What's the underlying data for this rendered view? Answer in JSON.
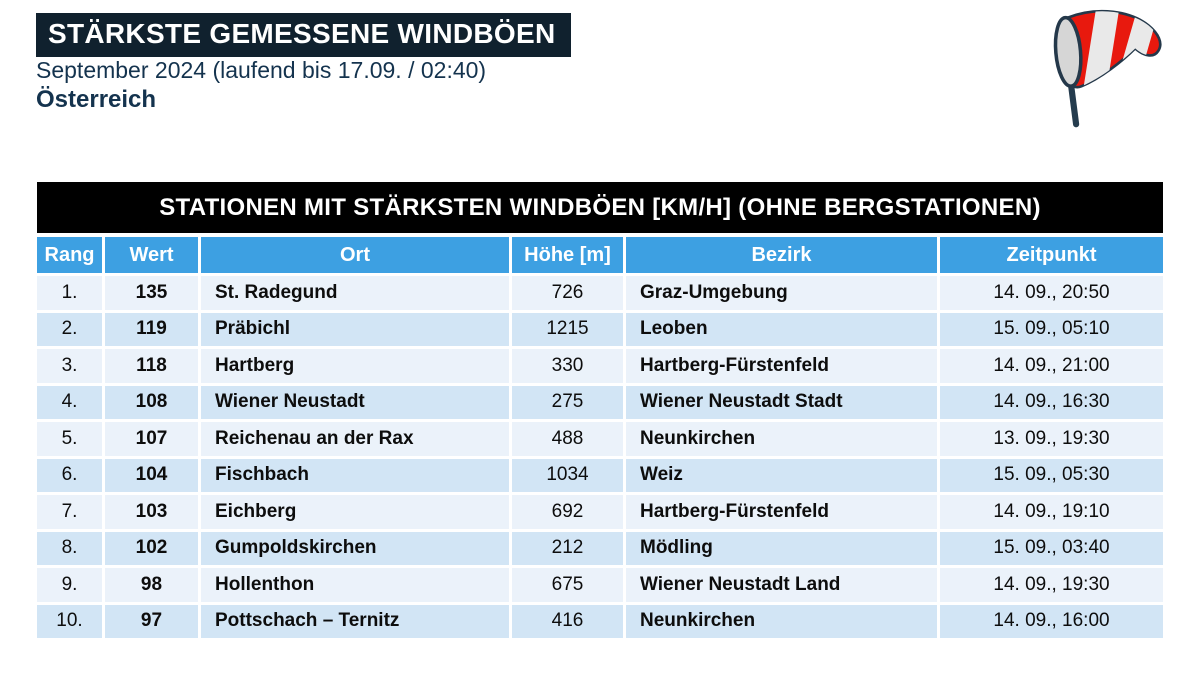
{
  "header": {
    "banner_title": "STÄRKSTE GEMESSENE WINDBÖEN",
    "subtitle": "September 2024 (laufend bis 17.09. / 02:40)",
    "region": "Österreich"
  },
  "icons": {
    "windsock": "windsock-icon"
  },
  "chart_data": {
    "type": "table",
    "title": "STATIONEN MIT STÄRKSTEN WINDBÖEN [KM/H] (OHNE BERGSTATIONEN)",
    "columns": [
      "Rang",
      "Wert",
      "Ort",
      "Höhe [m]",
      "Bezirk",
      "Zeitpunkt"
    ],
    "rows": [
      [
        "1.",
        135,
        "St. Radegund",
        726,
        "Graz-Umgebung",
        "14. 09., 20:50"
      ],
      [
        "2.",
        119,
        "Präbichl",
        1215,
        "Leoben",
        "15. 09., 05:10"
      ],
      [
        "3.",
        118,
        "Hartberg",
        330,
        "Hartberg-Fürstenfeld",
        "14. 09., 21:00"
      ],
      [
        "4.",
        108,
        "Wiener Neustadt",
        275,
        "Wiener Neustadt Stadt",
        "14. 09., 16:30"
      ],
      [
        "5.",
        107,
        "Reichenau an der Rax",
        488,
        "Neunkirchen",
        "13. 09., 19:30"
      ],
      [
        "6.",
        104,
        "Fischbach",
        1034,
        "Weiz",
        "15. 09., 05:30"
      ],
      [
        "7.",
        103,
        "Eichberg",
        692,
        "Hartberg-Fürstenfeld",
        "14. 09., 19:10"
      ],
      [
        "8.",
        102,
        "Gumpoldskirchen",
        212,
        "Mödling",
        "15. 09., 03:40"
      ],
      [
        "9.",
        98,
        "Hollenthon",
        675,
        "Wiener Neustadt Land",
        "14. 09., 19:30"
      ],
      [
        "10.",
        97,
        "Pottschach – Ternitz",
        416,
        "Neunkirchen",
        "14. 09., 16:00"
      ]
    ],
    "value_unit": "km/h",
    "legend_position": "none",
    "grid": false
  },
  "colors": {
    "banner_bg": "#10212e",
    "navy_text": "#14334e",
    "header_blue": "#3da0e2",
    "row_light": "#ebf2fa",
    "row_dark": "#d2e5f5",
    "cell_text": "#0d0d0d",
    "table_title_bg": "#000000",
    "windsock_red": "#e8190e",
    "windsock_stripe": "#e9e9e9",
    "windsock_pole": "#253c4e"
  }
}
